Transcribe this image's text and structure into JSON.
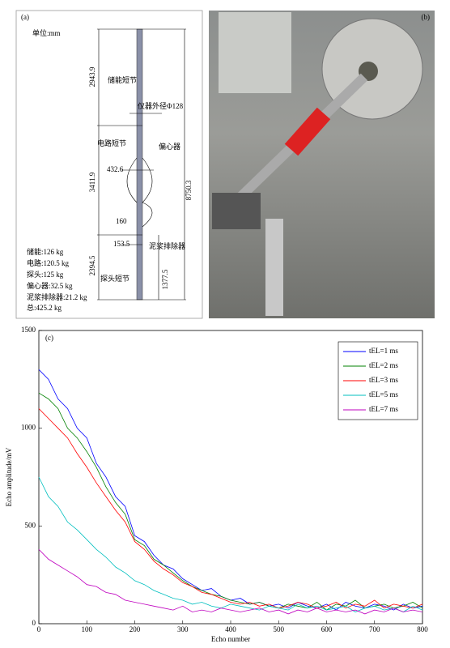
{
  "panel_a": {
    "label": "(a)",
    "unit": "单位:mm",
    "dims": [
      "2943.9",
      "3411.9",
      "8750.3",
      "432.6",
      "160",
      "153.5",
      "2394.5",
      "1377.5"
    ],
    "parts": [
      "储能短节",
      "仪器外径Φ128",
      "电路短节",
      "偏心器",
      "泥浆排除器",
      "探头短节"
    ],
    "weights": [
      "储能:126 kg",
      "电路:120.5 kg",
      "探头:125 kg",
      "偏心器:32.5 kg",
      "泥浆排除器:21.2 kg",
      "总:425.2 kg"
    ]
  },
  "panel_b": {
    "label": "(b)"
  },
  "chart_data": {
    "type": "line",
    "panel_label": "(c)",
    "x_label": "Echo number",
    "y_label": "Echo amplitude/mV",
    "x": [
      0,
      20,
      40,
      60,
      80,
      100,
      120,
      140,
      160,
      180,
      200,
      220,
      240,
      260,
      280,
      300,
      320,
      340,
      360,
      380,
      400,
      420,
      440,
      460,
      480,
      500,
      520,
      540,
      560,
      580,
      600,
      620,
      640,
      660,
      680,
      700,
      720,
      740,
      760,
      780,
      800
    ],
    "series": [
      {
        "name": "tEL=1 ms",
        "color": "#0000ff",
        "values": [
          1300,
          1250,
          1150,
          1100,
          1000,
          950,
          820,
          750,
          650,
          600,
          450,
          420,
          350,
          300,
          280,
          230,
          200,
          170,
          180,
          140,
          120,
          130,
          100,
          110,
          90,
          100,
          80,
          110,
          90,
          80,
          100,
          70,
          110,
          90,
          80,
          100,
          90,
          70,
          100,
          80,
          90
        ]
      },
      {
        "name": "tEL=2 ms",
        "color": "#008000",
        "values": [
          1180,
          1150,
          1100,
          1000,
          950,
          880,
          800,
          700,
          620,
          560,
          430,
          400,
          330,
          300,
          260,
          220,
          190,
          170,
          150,
          140,
          120,
          110,
          100,
          110,
          90,
          80,
          100,
          90,
          80,
          110,
          70,
          100,
          90,
          120,
          80,
          90,
          100,
          80,
          90,
          110,
          80
        ]
      },
      {
        "name": "tEL=3 ms",
        "color": "#ff0000",
        "values": [
          1100,
          1050,
          1000,
          950,
          870,
          800,
          720,
          650,
          580,
          520,
          420,
          380,
          320,
          280,
          250,
          210,
          190,
          160,
          150,
          130,
          110,
          100,
          110,
          90,
          100,
          80,
          90,
          110,
          100,
          80,
          90,
          110,
          80,
          100,
          90,
          120,
          80,
          100,
          90,
          80,
          100
        ]
      },
      {
        "name": "tEL=5 ms",
        "color": "#00bfbf",
        "values": [
          750,
          650,
          600,
          520,
          480,
          430,
          380,
          340,
          290,
          260,
          220,
          200,
          170,
          150,
          130,
          120,
          100,
          110,
          90,
          80,
          100,
          90,
          80,
          70,
          90,
          80,
          70,
          100,
          80,
          90,
          70,
          80,
          90,
          60,
          80,
          90,
          70,
          80,
          60,
          90,
          70
        ]
      },
      {
        "name": "tEL=7 ms",
        "color": "#bf00bf",
        "values": [
          380,
          330,
          300,
          270,
          240,
          200,
          190,
          160,
          150,
          120,
          110,
          100,
          90,
          80,
          70,
          90,
          60,
          70,
          60,
          80,
          70,
          60,
          70,
          80,
          60,
          70,
          50,
          70,
          60,
          80,
          60,
          70,
          60,
          70,
          50,
          70,
          60,
          80,
          60,
          70,
          60
        ]
      }
    ],
    "xlim": [
      0,
      800
    ],
    "xticks": [
      0,
      100,
      200,
      300,
      400,
      500,
      600,
      700,
      800
    ],
    "ylim": [
      0,
      1500
    ],
    "yticks": [
      0,
      500,
      1000,
      1500
    ],
    "legend": "upper right"
  }
}
